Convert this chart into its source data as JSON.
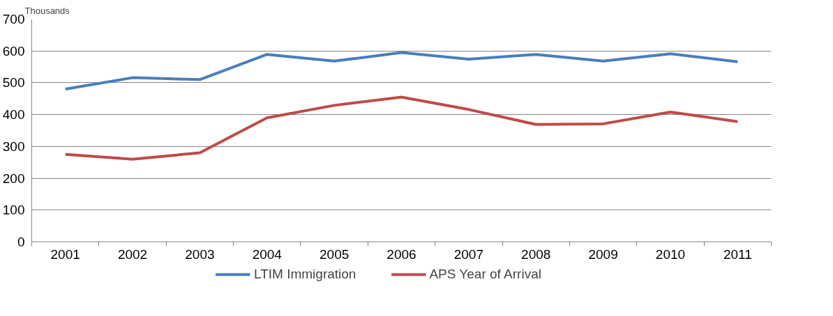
{
  "chart_data": {
    "type": "line",
    "ylabel": "Thousands",
    "categories": [
      "2001",
      "2002",
      "2003",
      "2004",
      "2005",
      "2006",
      "2007",
      "2008",
      "2009",
      "2010",
      "2011"
    ],
    "series": [
      {
        "name": "LTIM Immigration",
        "color": "#4a7ebb",
        "values": [
          480,
          516,
          510,
          589,
          568,
          595,
          574,
          589,
          568,
          591,
          566
        ]
      },
      {
        "name": "APS Year of Arrival",
        "color": "#be4b48",
        "values": [
          275,
          260,
          280,
          390,
          429,
          455,
          416,
          369,
          371,
          408,
          378
        ]
      }
    ],
    "ylim": [
      0,
      700
    ],
    "yticks": [
      0,
      100,
      200,
      300,
      400,
      500,
      600,
      700
    ],
    "grid": "y",
    "legend": "bottom"
  }
}
